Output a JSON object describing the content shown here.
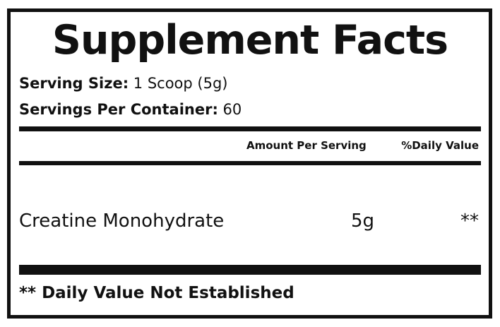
{
  "title": "Supplement Facts",
  "serving_size": {
    "label": "Serving Size:",
    "value": "1 Scoop (5g)"
  },
  "servings_per_container": {
    "label": "Servings Per Container:",
    "value": "60"
  },
  "columns": {
    "amount": "Amount Per Serving",
    "daily_value": "%Daily Value"
  },
  "ingredients": [
    {
      "name": "Creatine Monohydrate",
      "amount": "5g",
      "daily_value": "**"
    }
  ],
  "footnote": "** Daily Value Not Established"
}
